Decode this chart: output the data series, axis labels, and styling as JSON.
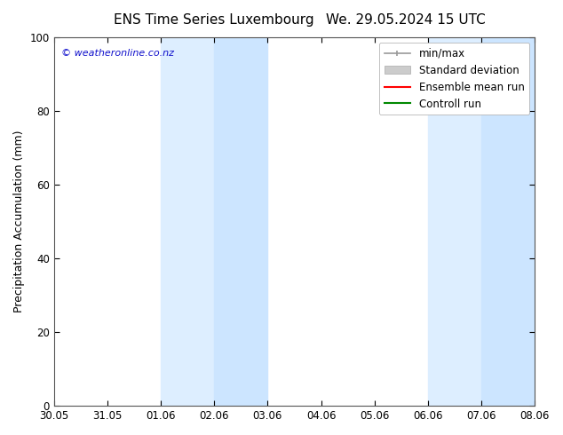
{
  "title_left": "ENS Time Series Luxembourg",
  "title_right": "We. 29.05.2024 15 UTC",
  "ylabel": "Precipitation Accumulation (mm)",
  "watermark": "© weatheronline.co.nz",
  "ylim": [
    0,
    100
  ],
  "yticks": [
    0,
    20,
    40,
    60,
    80,
    100
  ],
  "xtick_labels": [
    "30.05",
    "31.05",
    "01.06",
    "02.06",
    "03.06",
    "04.06",
    "05.06",
    "06.06",
    "07.06",
    "08.06"
  ],
  "xtick_positions": [
    0,
    1,
    2,
    3,
    4,
    5,
    6,
    7,
    8,
    9
  ],
  "shaded_bands": [
    {
      "x_start": 2,
      "x_end": 3,
      "color": "#ddeeff"
    },
    {
      "x_start": 3,
      "x_end": 4,
      "color": "#cce5ff"
    },
    {
      "x_start": 7,
      "x_end": 8,
      "color": "#ddeeff"
    },
    {
      "x_start": 8,
      "x_end": 9,
      "color": "#cce5ff"
    }
  ],
  "legend_entries": [
    {
      "label": "min/max",
      "type": "minmax",
      "color": "#999999",
      "lw": 1.2
    },
    {
      "label": "Standard deviation",
      "type": "band",
      "color": "#cccccc"
    },
    {
      "label": "Ensemble mean run",
      "type": "line",
      "color": "#ff0000",
      "lw": 1.5
    },
    {
      "label": "Controll run",
      "type": "line",
      "color": "#008800",
      "lw": 1.5
    }
  ],
  "background_color": "#ffffff",
  "plot_bg_color": "#ffffff",
  "watermark_color": "#1111cc",
  "title_fontsize": 11,
  "axis_label_fontsize": 9,
  "tick_fontsize": 8.5,
  "legend_fontsize": 8.5
}
